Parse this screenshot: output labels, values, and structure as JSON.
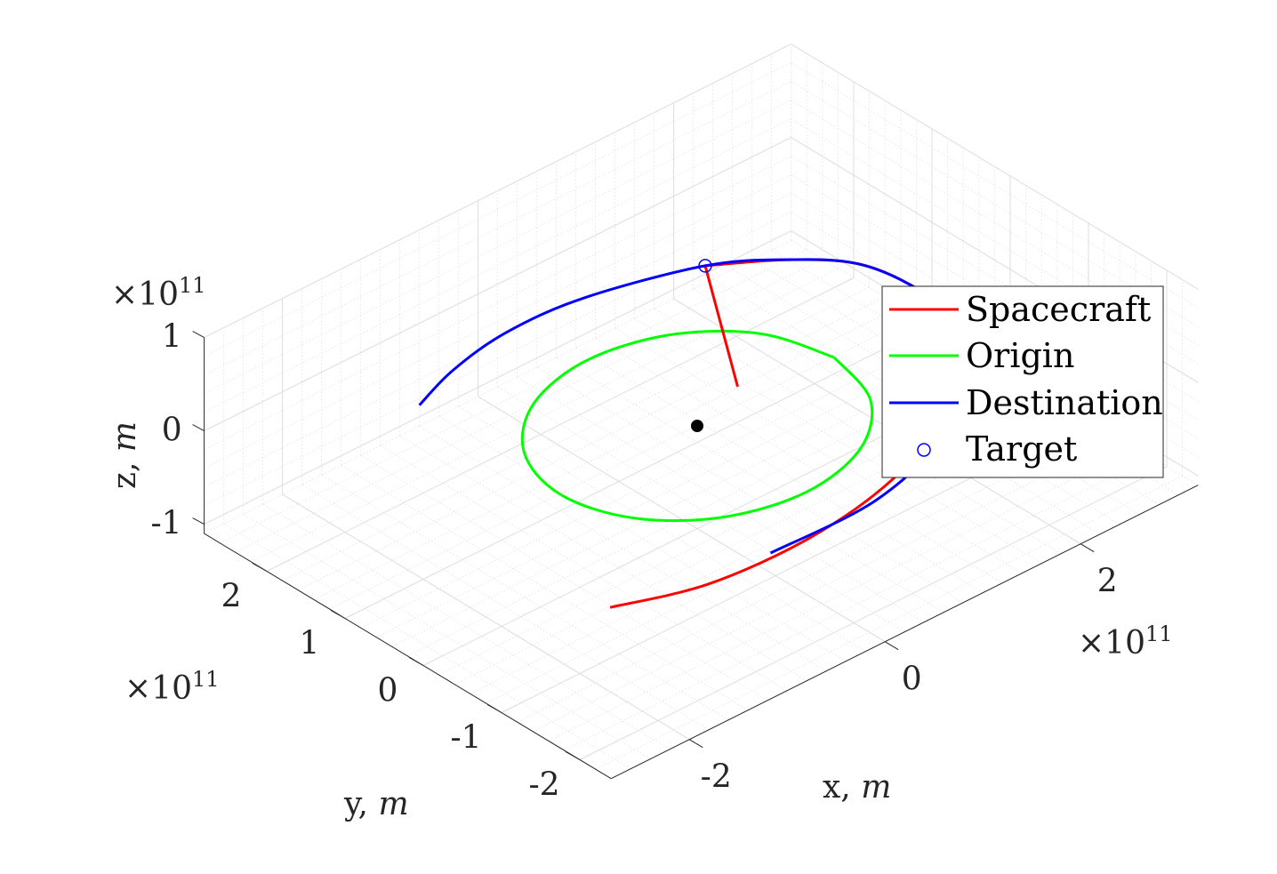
{
  "chart_data": {
    "type": "line3d",
    "title": "",
    "axes": {
      "x": {
        "label": "x, ",
        "label_unit": "m",
        "exponent": "×10",
        "exponent_power": "11",
        "ticks": [
          -2,
          0,
          2
        ],
        "tick_labels": [
          "-2",
          "0",
          "2"
        ],
        "range": [
          -2.8,
          3.2
        ]
      },
      "y": {
        "label": "y, ",
        "label_unit": "m",
        "exponent": "×10",
        "exponent_power": "11",
        "ticks": [
          -2,
          -1,
          0,
          1,
          2
        ],
        "tick_labels": [
          "-2",
          "-1",
          "0",
          "1",
          "2"
        ],
        "range": [
          -2.4,
          2.8
        ]
      },
      "z": {
        "label": "z, ",
        "label_unit": "m",
        "exponent": "×10",
        "exponent_power": "11",
        "ticks": [
          -1,
          0,
          1
        ],
        "tick_labels": [
          "-1",
          "0",
          "1"
        ],
        "range": [
          -1.1,
          1.0
        ]
      }
    },
    "grid": true,
    "minor_grid": true,
    "legend_position": "right",
    "series": [
      {
        "name": "Spacecraft",
        "color": "#ff0000",
        "x": [
          -2.17,
          -1.4,
          -0.4,
          0.6,
          1.5,
          2.1,
          2.45,
          2.5,
          2.4,
          2.05,
          1.53,
          0.59
        ],
        "y": [
          -1.6,
          -1.9,
          -1.95,
          -1.75,
          -1.3,
          -0.75,
          -0.2,
          0.4,
          0.95,
          1.4,
          1.81,
          0.22
        ],
        "z": [
          0,
          0,
          0,
          0,
          0,
          0,
          0,
          0,
          0,
          0,
          0,
          0
        ]
      },
      {
        "name": "Origin",
        "color": "#00ff00",
        "x": [
          1.4,
          1.21,
          0.7,
          0.0,
          -0.7,
          -1.21,
          -1.4,
          -1.21,
          -0.7,
          0.0,
          0.7,
          1.21,
          1.4
        ],
        "y": [
          0.0,
          0.7,
          1.21,
          1.4,
          1.21,
          0.7,
          0.0,
          -0.7,
          -1.21,
          -1.4,
          -1.21,
          -0.7,
          0.0
        ],
        "z": [
          0,
          0,
          0,
          0,
          0,
          0,
          0,
          0,
          0,
          0,
          0,
          0,
          0
        ]
      },
      {
        "name": "Destination",
        "color": "#0000ff",
        "x": [
          -0.77,
          0.3,
          1.3,
          2.0,
          2.4,
          2.5,
          2.4,
          2.05,
          1.53,
          0.55,
          -0.2,
          -0.85,
          -1.36
        ],
        "y": [
          -1.9,
          -1.9,
          -1.55,
          -1.0,
          -0.4,
          0.3,
          0.95,
          1.4,
          1.81,
          2.14,
          2.19,
          2.06,
          1.85
        ],
        "z": [
          0,
          0,
          0,
          0,
          0,
          0,
          0,
          0,
          0,
          0,
          0,
          0,
          0
        ]
      }
    ],
    "markers": [
      {
        "name": "Target",
        "symbol": "open-circle",
        "color": "#0000ff",
        "x": 1.53,
        "y": 1.81,
        "z": 0
      },
      {
        "name": "",
        "symbol": "filled-circle",
        "color": "#000000",
        "x": 0,
        "y": 0,
        "z": 0
      }
    ],
    "legend": [
      "Spacecraft",
      "Origin",
      "Destination",
      "Target"
    ]
  }
}
